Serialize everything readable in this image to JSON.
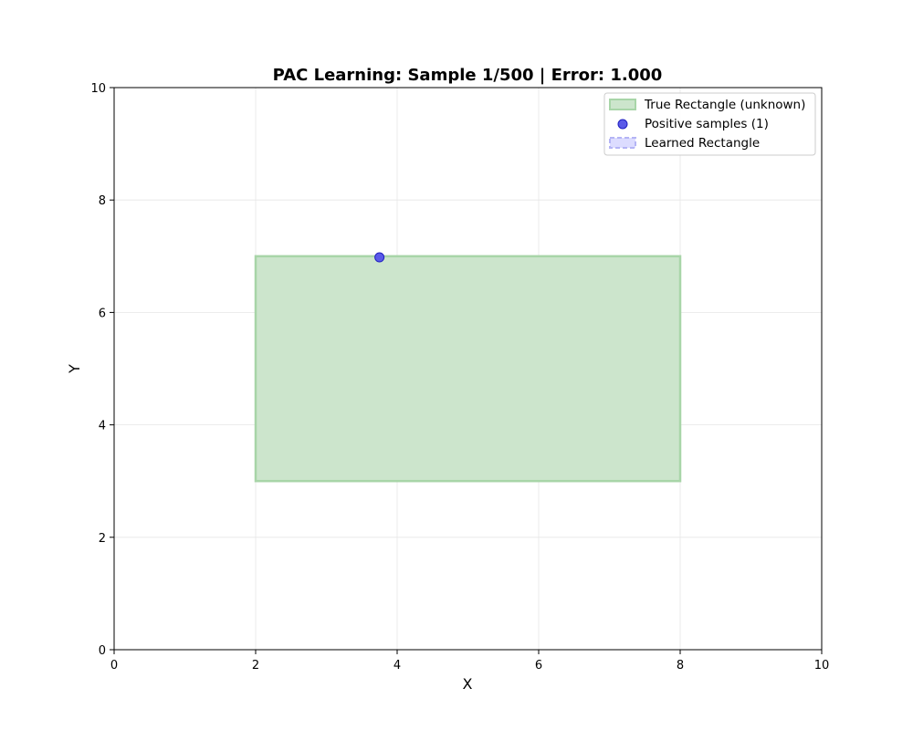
{
  "chart_data": {
    "type": "scatter",
    "title": "PAC Learning: Sample 1/500 | Error: 1.000",
    "xlabel": "X",
    "ylabel": "Y",
    "xlim": [
      0,
      10
    ],
    "ylim": [
      0,
      10
    ],
    "xticks": [
      0,
      2,
      4,
      6,
      8,
      10
    ],
    "yticks": [
      0,
      2,
      4,
      6,
      8,
      10
    ],
    "grid": true,
    "legend_position": "top-right",
    "true_rectangle": {
      "name": "True Rectangle (unknown)",
      "x_min": 2,
      "x_max": 8,
      "y_min": 3,
      "y_max": 7,
      "fill_color": "#cce5cc",
      "edge_color": "#a8d5a8"
    },
    "positive_samples": {
      "name": "Positive samples (1)",
      "color": "#5a5ae8",
      "edge_color": "#2020c0",
      "points": [
        {
          "x": 3.75,
          "y": 6.98
        }
      ]
    },
    "learned_rectangle": {
      "name": "Learned Rectangle",
      "fill_color": "#dcdcff",
      "edge_color": "#b4b4f5"
    }
  }
}
